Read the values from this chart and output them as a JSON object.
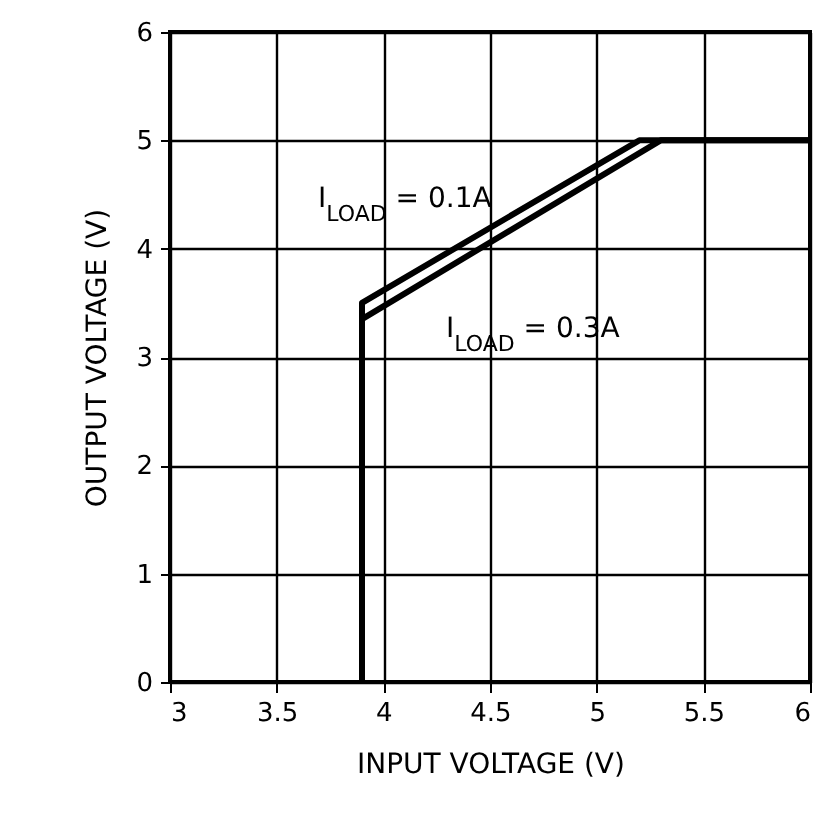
{
  "chart_data": {
    "type": "line",
    "xlabel": "INPUT VOLTAGE (V)",
    "ylabel": "OUTPUT VOLTAGE (V)",
    "series": [
      {
        "name": "I$_{LOAD}$ = 0.1A",
        "color": "#000000",
        "x": [
          3.9,
          3.9,
          5.2,
          6
        ],
        "values": [
          0,
          3.5,
          5,
          5
        ]
      },
      {
        "name": "I$_{LOAD}$ = 0.3A",
        "color": "#000000",
        "x": [
          3.9,
          3.9,
          5.3,
          6
        ],
        "values": [
          0,
          3.35,
          5,
          5
        ]
      }
    ],
    "xlim": [
      3,
      6
    ],
    "xticks": [
      3,
      3.5,
      4,
      4.5,
      5,
      5.5,
      6
    ],
    "ylim": [
      0,
      6
    ],
    "yticks": [
      0,
      1,
      2,
      3,
      4,
      5,
      6
    ],
    "grid": true,
    "line_style": "solid"
  }
}
